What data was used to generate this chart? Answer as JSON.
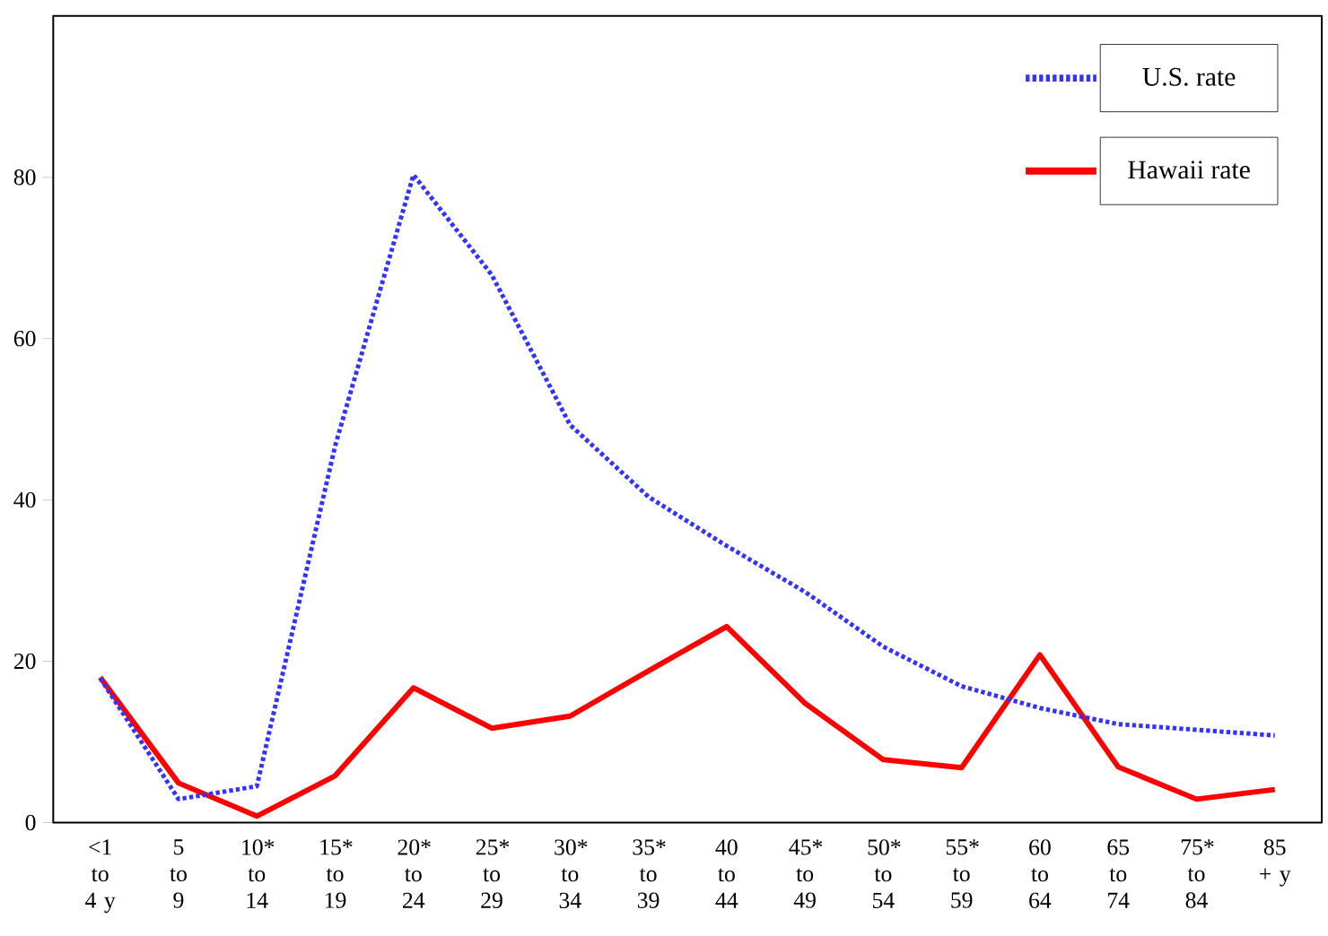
{
  "chart_data": {
    "type": "line",
    "categories": [
      "<1 to 4 y",
      "5 to 9",
      "10* to 14",
      "15* to 19",
      "20* to 24",
      "25* to 29",
      "30* to 34",
      "35* to 39",
      "40 to 44",
      "45* to 49",
      "50* to 54",
      "55* to 59",
      "60 to 64",
      "65 to 74",
      "75* to 84",
      "85 + y"
    ],
    "series": [
      {
        "name": "U.S. rate",
        "color": "#3333ff",
        "line_style": "dotted",
        "values": [
          17.9,
          2.9,
          4.5,
          46.7,
          80.3,
          67.9,
          49.3,
          40.4,
          34.3,
          28.6,
          21.8,
          16.9,
          14.2,
          12.2,
          11.5,
          10.8
        ]
      },
      {
        "name": "Hawaii rate",
        "color": "#ff0000",
        "line_style": "solid",
        "values": [
          18.0,
          4.9,
          0.8,
          5.8,
          16.7,
          11.7,
          13.2,
          18.8,
          24.3,
          14.8,
          7.8,
          6.8,
          20.8,
          6.9,
          2.9,
          4.1
        ]
      }
    ],
    "ylim": [
      0,
      100
    ],
    "yticks": [
      0,
      20,
      40,
      60,
      80
    ],
    "grid": false,
    "legend": "top right",
    "marker": "none"
  }
}
